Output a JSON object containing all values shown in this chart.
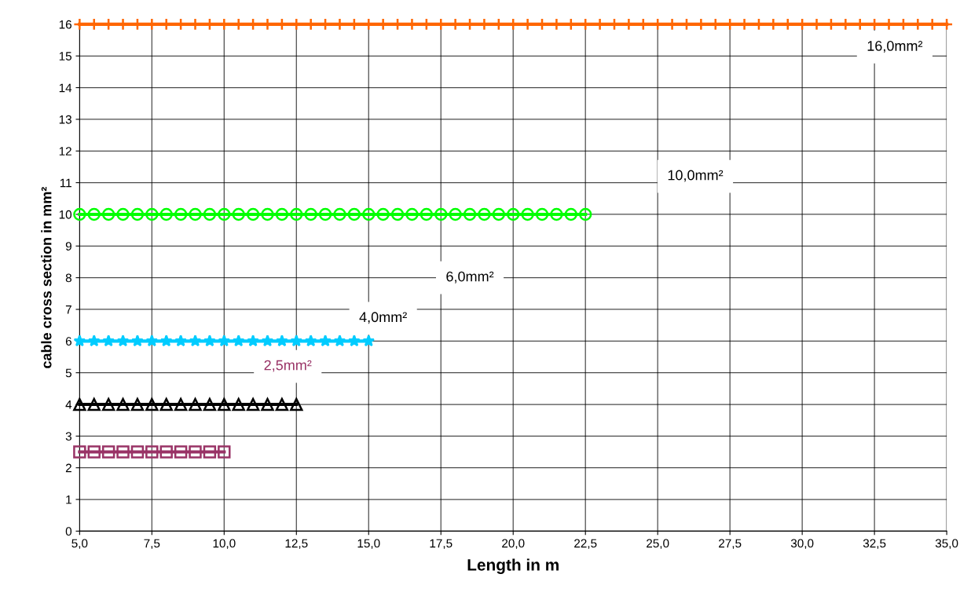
{
  "chart_data": {
    "type": "line",
    "xlabel": "Length in m",
    "ylabel": "cable cross section in mm²",
    "xlim": [
      5,
      35
    ],
    "ylim": [
      0,
      16
    ],
    "xticks": [
      {
        "value": 5,
        "label": "5,0"
      },
      {
        "value": 7.5,
        "label": "7,5"
      },
      {
        "value": 10,
        "label": "10,0"
      },
      {
        "value": 12.5,
        "label": "12,5"
      },
      {
        "value": 15,
        "label": "15,0"
      },
      {
        "value": 17.5,
        "label": "17,5"
      },
      {
        "value": 20,
        "label": "20,0"
      },
      {
        "value": 22.5,
        "label": "22,5"
      },
      {
        "value": 25,
        "label": "25,0"
      },
      {
        "value": 27.5,
        "label": "27,5"
      },
      {
        "value": 30,
        "label": "30,0"
      },
      {
        "value": 32.5,
        "label": "32,5"
      },
      {
        "value": 35,
        "label": "35,0"
      }
    ],
    "yticks": [
      0,
      1,
      2,
      3,
      4,
      5,
      6,
      7,
      8,
      9,
      10,
      11,
      12,
      13,
      14,
      15,
      16
    ],
    "grid": true,
    "line_style": "solid",
    "series": [
      {
        "color": "#993366",
        "marker": "square",
        "x": [
          5,
          5.5,
          6,
          6.5,
          7,
          7.5,
          8,
          8.5,
          9,
          9.5,
          10
        ],
        "values": [
          2.5,
          2.5,
          2.5,
          2.5,
          2.5,
          2.5,
          2.5,
          2.5,
          2.5,
          2.5,
          2.5
        ]
      },
      {
        "color": "#000000",
        "marker": "triangle",
        "x": [
          5,
          5.5,
          6,
          6.5,
          7,
          7.5,
          8,
          8.5,
          9,
          9.5,
          10,
          10.5,
          11,
          11.5,
          12,
          12.5
        ],
        "values": [
          4,
          4,
          4,
          4,
          4,
          4,
          4,
          4,
          4,
          4,
          4,
          4,
          4,
          4,
          4,
          4
        ]
      },
      {
        "color": "#00ccff",
        "marker": "star",
        "x": [
          5,
          5.5,
          6,
          6.5,
          7,
          7.5,
          8,
          8.5,
          9,
          9.5,
          10,
          10.5,
          11,
          11.5,
          12,
          12.5,
          13,
          13.5,
          14,
          14.5,
          15
        ],
        "values": [
          6,
          6,
          6,
          6,
          6,
          6,
          6,
          6,
          6,
          6,
          6,
          6,
          6,
          6,
          6,
          6,
          6,
          6,
          6,
          6,
          6
        ]
      },
      {
        "color": "#00ff00",
        "marker": "circle",
        "x": [
          5,
          5.5,
          6,
          6.5,
          7,
          7.5,
          8,
          8.5,
          9,
          9.5,
          10,
          10.5,
          11,
          11.5,
          12,
          12.5,
          13,
          13.5,
          14,
          14.5,
          15,
          15.5,
          16,
          16.5,
          17,
          17.5,
          18,
          18.5,
          19,
          19.5,
          20,
          20.5,
          21,
          21.5,
          22,
          22.5
        ],
        "values": [
          10,
          10,
          10,
          10,
          10,
          10,
          10,
          10,
          10,
          10,
          10,
          10,
          10,
          10,
          10,
          10,
          10,
          10,
          10,
          10,
          10,
          10,
          10,
          10,
          10,
          10,
          10,
          10,
          10,
          10,
          10,
          10,
          10,
          10,
          10,
          10
        ]
      },
      {
        "color": "#ff6600",
        "marker": "cross",
        "x": [
          5,
          5.5,
          6,
          6.5,
          7,
          7.5,
          8,
          8.5,
          9,
          9.5,
          10,
          10.5,
          11,
          11.5,
          12,
          12.5,
          13,
          13.5,
          14,
          14.5,
          15,
          15.5,
          16,
          16.5,
          17,
          17.5,
          18,
          18.5,
          19,
          19.5,
          20,
          20.5,
          21,
          21.5,
          22,
          22.5,
          23,
          23.5,
          24,
          24.5,
          25,
          25.5,
          26,
          26.5,
          27,
          27.5,
          28,
          28.5,
          29,
          29.5,
          30,
          30.5,
          31,
          31.5,
          32,
          32.5,
          33,
          33.5,
          34,
          34.5,
          35
        ],
        "values": [
          16,
          16,
          16,
          16,
          16,
          16,
          16,
          16,
          16,
          16,
          16,
          16,
          16,
          16,
          16,
          16,
          16,
          16,
          16,
          16,
          16,
          16,
          16,
          16,
          16,
          16,
          16,
          16,
          16,
          16,
          16,
          16,
          16,
          16,
          16,
          16,
          16,
          16,
          16,
          16,
          16,
          16,
          16,
          16,
          16,
          16,
          16,
          16,
          16,
          16,
          16,
          16,
          16,
          16,
          16,
          16,
          16,
          16,
          16,
          16,
          16
        ]
      }
    ],
    "annotations": [
      "16,0mm²",
      "10,0mm²",
      "6,0mm²",
      "4,0mm²",
      "2,5mm²"
    ]
  }
}
